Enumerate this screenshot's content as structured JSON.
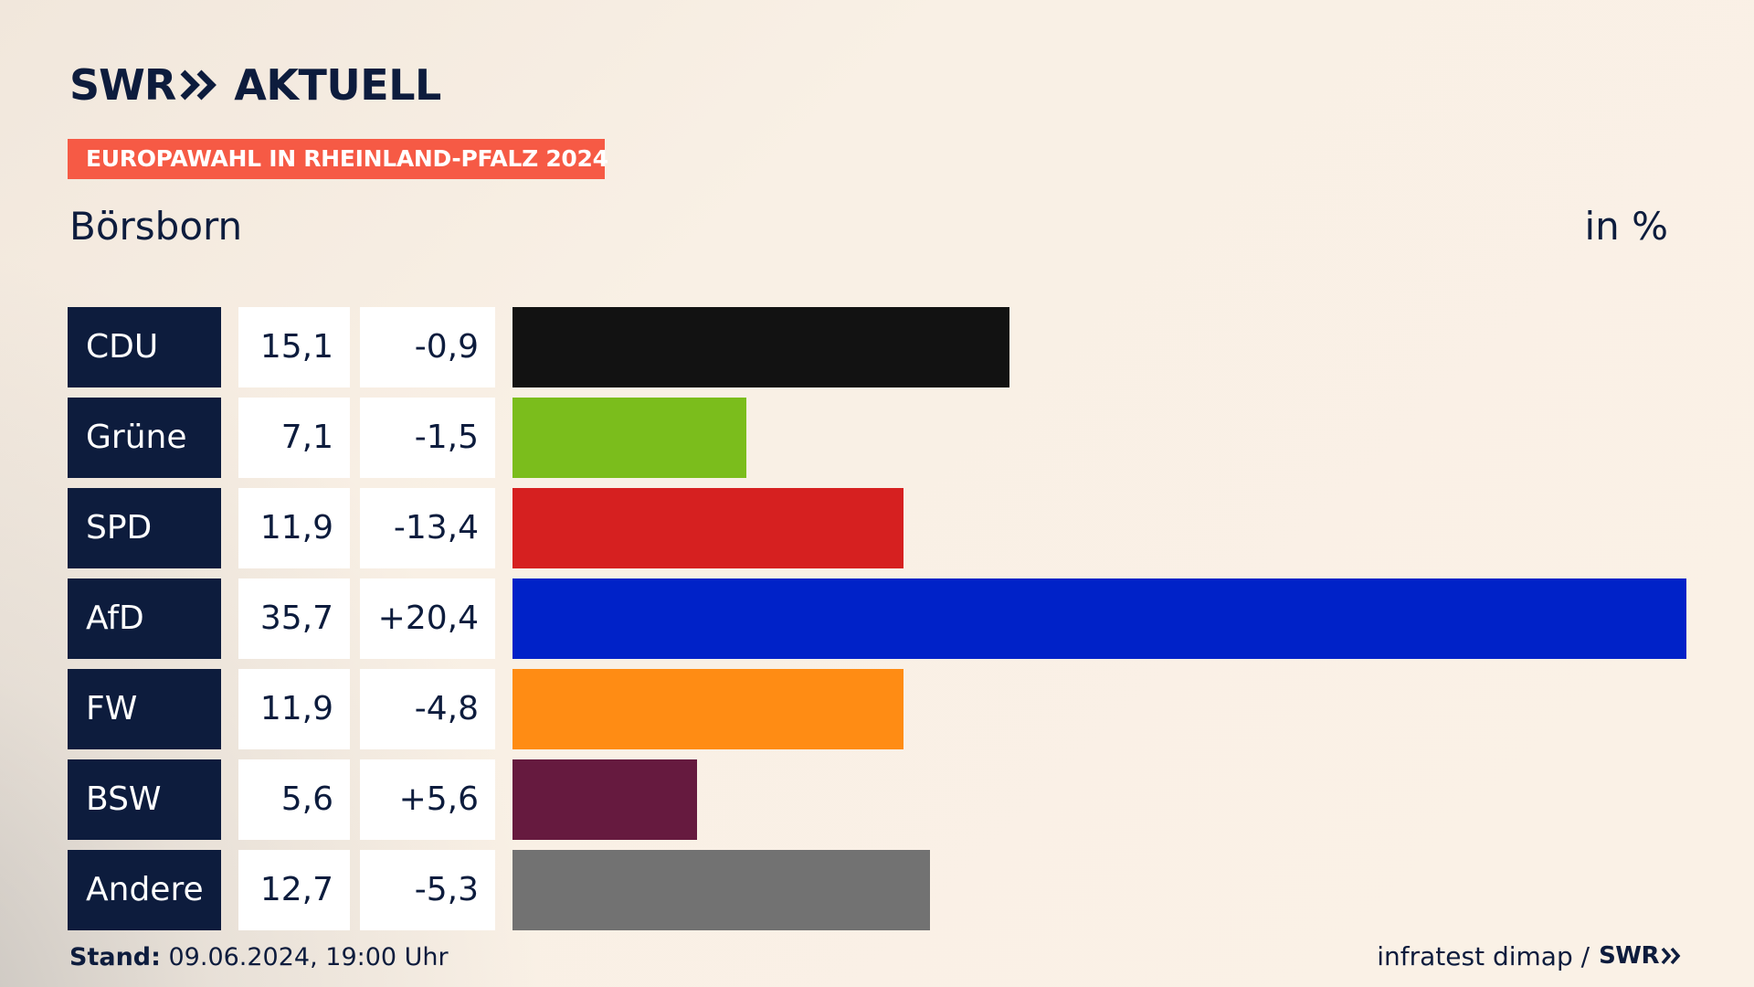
{
  "brand": {
    "logo_text": "SWR",
    "logo_suffix": "AKTUELL",
    "chevron_icon": "double-chevron-right-icon",
    "color_navy": "#0d1c3d"
  },
  "header": {
    "badge": "EUROPAWAHL IN RHEINLAND-PFALZ 2024",
    "badge_color": "#f65a45",
    "place": "Börsborn",
    "unit": "in %"
  },
  "footer": {
    "stand_label": "Stand:",
    "stand_value": " 09.06.2024, 19:00 Uhr",
    "source": "infratest dimap /",
    "source_logo": "SWR"
  },
  "chart_data": {
    "type": "bar",
    "orientation": "horizontal",
    "title": "Börsborn",
    "unit": "in %",
    "xlim": [
      0,
      35.7
    ],
    "categories": [
      "CDU",
      "Grüne",
      "SPD",
      "AfD",
      "FW",
      "BSW",
      "Andere"
    ],
    "values": [
      15.1,
      7.1,
      11.9,
      35.7,
      11.9,
      5.6,
      12.7
    ],
    "value_labels": [
      "15,1",
      "7,1",
      "11,9",
      "35,7",
      "11,9",
      "5,6",
      "12,7"
    ],
    "changes": [
      -0.9,
      -1.5,
      -13.4,
      20.4,
      -4.8,
      5.6,
      -5.3
    ],
    "change_labels": [
      "-0,9",
      "-1,5",
      "-13,4",
      "+20,4",
      "-4,8",
      "+5,6",
      "-5,3"
    ],
    "colors": [
      "#121212",
      "#7bbd1c",
      "#d62020",
      "#0022c8",
      "#ff8c14",
      "#661a3f",
      "#727272"
    ]
  }
}
